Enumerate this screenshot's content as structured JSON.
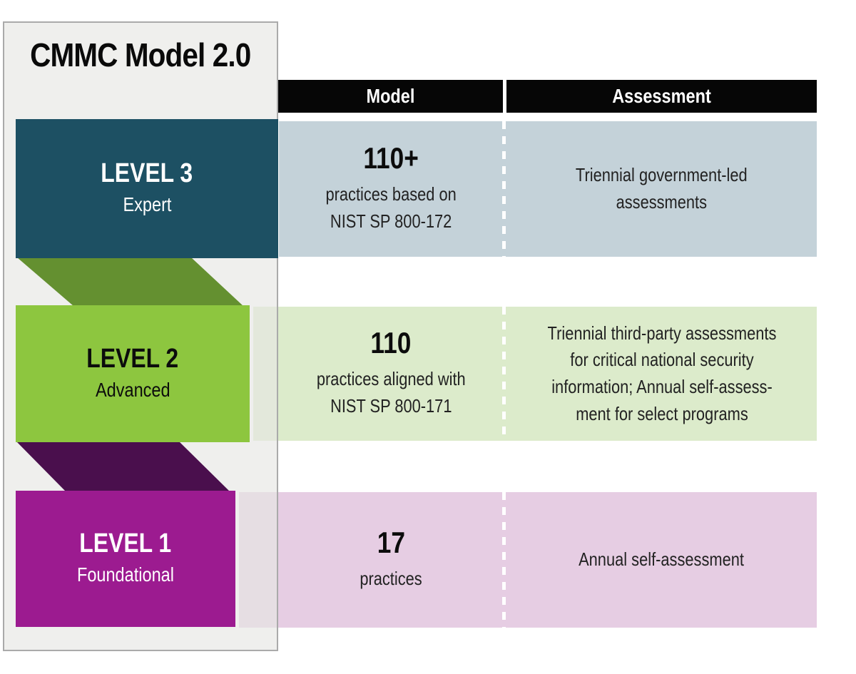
{
  "page": {
    "title": "CMMC Model 2.0"
  },
  "columns": {
    "model_label": "Model",
    "assessment_label": "Assessment"
  },
  "levels": [
    {
      "name": "LEVEL 3",
      "tier": "Expert",
      "model_value": "110+",
      "model_desc": "practices based on\nNIST SP 800-172",
      "assessment": "Triennial government-led\nassessments",
      "box_color": "#1d5063",
      "cell_color": "#c4d2d9",
      "text_color": "#ffffff"
    },
    {
      "name": "LEVEL 2",
      "tier": "Advanced",
      "model_value": "110",
      "model_desc": "practices aligned with\nNIST SP 800-171",
      "assessment": "Triennial third-party assessments\nfor critical national security\ninformation; Annual self-assess-\nment for select programs",
      "box_color": "#8dc63f",
      "cell_color": "#dcebcb",
      "fold_color": "#649030",
      "text_color": "#0c0c0c"
    },
    {
      "name": "LEVEL 1",
      "tier": "Foundational",
      "model_value": "17",
      "model_desc": "practices",
      "assessment": "Annual self-assessment",
      "box_color": "#9c1b90",
      "cell_color": "#e6cde3",
      "fold_color": "#4a0f4d",
      "text_color": "#ffffff"
    }
  ],
  "palette": {
    "header_bar": "#060606",
    "header_text": "#ffffff",
    "panel_bg": "#f0f0ef",
    "panel_border": "#aaaaaa",
    "divider_dash": "#ffffff",
    "page_bg": "#ffffff"
  }
}
